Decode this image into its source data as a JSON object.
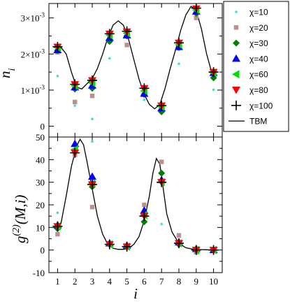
{
  "chart_data": [
    {
      "type": "scatter",
      "panel": "top",
      "ylabel_main": "n",
      "ylabel_sub": "i",
      "xlim": [
        0.5,
        10.5
      ],
      "ylim": [
        -0.0003,
        0.0034
      ],
      "y_ticks": [
        {
          "v": 0,
          "label": "0"
        },
        {
          "v": 0.001,
          "label": "1×10",
          "exp": "-3"
        },
        {
          "v": 0.002,
          "label": "2×10",
          "exp": "-3"
        },
        {
          "v": 0.003,
          "label": "3×10",
          "exp": "-3"
        }
      ],
      "series": [
        {
          "name": "χ=10",
          "marker": "dot",
          "color": "#40e0d0",
          "values": [
            0.00139,
            0.00057,
            0.0002,
            0.00188,
            0.00225,
            0.00073,
            0.0005,
            0.00173,
            0.00307,
            0.00101
          ]
        },
        {
          "name": "χ=20",
          "marker": "square",
          "color": "#bc8f8f",
          "values": [
            0.00205,
            0.00067,
            0.00084,
            0.00236,
            0.00225,
            0.00094,
            0.00053,
            0.00216,
            0.003,
            0.0014
          ]
        },
        {
          "name": "χ=30",
          "marker": "diamond",
          "color": "#008000",
          "values": [
            0.0021,
            0.00103,
            0.00105,
            0.00235,
            0.0025,
            0.00088,
            0.0004,
            0.00218,
            0.00313,
            0.00134
          ]
        },
        {
          "name": "χ=40",
          "marker": "triangle-up",
          "color": "#0000ff",
          "values": [
            0.00211,
            0.00108,
            0.00113,
            0.00245,
            0.00252,
            0.0009,
            0.0005,
            0.0022,
            0.00318,
            0.00148
          ]
        },
        {
          "name": "χ=60",
          "marker": "triangle-left",
          "color": "#00e000",
          "values": [
            0.00218,
            0.00112,
            0.0012,
            0.00252,
            0.00258,
            0.00098,
            0.00054,
            0.00226,
            0.00322,
            0.00148
          ]
        },
        {
          "name": "χ=80",
          "marker": "triangle-down",
          "color": "#ff0000",
          "values": [
            0.0022,
            0.00116,
            0.00127,
            0.00256,
            0.00262,
            0.00105,
            0.00057,
            0.00231,
            0.00326,
            0.0015
          ]
        },
        {
          "name": "χ=100",
          "marker": "plus",
          "color": "#000000",
          "values": [
            0.0022,
            0.00116,
            0.00127,
            0.00256,
            0.00263,
            0.00105,
            0.00057,
            0.00231,
            0.00327,
            0.0015
          ]
        }
      ],
      "curve": {
        "name": "TBM",
        "x": [
          0.98,
          1.2,
          1.5,
          1.8,
          2.1,
          2.4,
          2.7,
          3.0,
          3.3,
          3.6,
          3.9,
          4.2,
          4.5,
          4.8,
          5.1,
          5.4,
          5.7,
          6.0,
          6.3,
          6.6,
          6.9,
          7.2,
          7.5,
          7.8,
          8.1,
          8.4,
          8.7,
          9.0,
          9.3,
          9.6,
          9.9
        ],
        "y": [
          0.00203,
          0.00218,
          0.002,
          0.0015,
          0.00108,
          0.00103,
          0.00118,
          0.00132,
          0.0016,
          0.002,
          0.00245,
          0.0028,
          0.00292,
          0.0028,
          0.0024,
          0.00185,
          0.0013,
          0.00088,
          0.0006,
          0.00048,
          0.0006,
          0.00105,
          0.0016,
          0.0021,
          0.00265,
          0.00308,
          0.00332,
          0.0032,
          0.0027,
          0.002,
          0.00148
        ]
      }
    },
    {
      "type": "scatter",
      "panel": "bottom",
      "ylabel_main": "g",
      "ylabel_sup": "(2)",
      "ylabel_rest": "(M,i)",
      "xlabel": "i",
      "xlim": [
        0.5,
        10.5
      ],
      "ylim": [
        -10,
        50
      ],
      "x_ticks": [
        "1",
        "2",
        "3",
        "4",
        "5",
        "6",
        "7",
        "8",
        "9",
        "10"
      ],
      "y_ticks": [
        "-10",
        "0",
        "10",
        "20",
        "30",
        "40",
        "50"
      ],
      "series": [
        {
          "name": "χ=10",
          "values": [
            16.5,
            45.0,
            48.0,
            2.5,
            0.5,
            19.5,
            11.5,
            6.0,
            -1.5,
            0.5
          ]
        },
        {
          "name": "χ=20",
          "values": [
            7.0,
            42.0,
            19.0,
            3.0,
            1.5,
            20.0,
            39.0,
            6.5,
            -1.0,
            0.0
          ]
        },
        {
          "name": "χ=30",
          "values": [
            9.5,
            44.0,
            28.0,
            2.5,
            1.5,
            12.5,
            34.0,
            2.5,
            0.0,
            0.0
          ]
        },
        {
          "name": "χ=40",
          "values": [
            11.0,
            47.0,
            32.5,
            3.0,
            2.0,
            17.5,
            31.0,
            3.5,
            0.5,
            0.0
          ]
        },
        {
          "name": "χ=60",
          "values": [
            10.5,
            44.5,
            29.5,
            2.5,
            1.5,
            15.5,
            30.0,
            3.0,
            0.0,
            0.0
          ]
        },
        {
          "name": "χ=80",
          "values": [
            10.5,
            43.0,
            29.0,
            2.5,
            1.5,
            15.0,
            30.0,
            3.0,
            0.0,
            0.0
          ]
        },
        {
          "name": "χ=100",
          "values": [
            10.5,
            43.0,
            29.0,
            2.5,
            1.5,
            15.0,
            30.0,
            3.0,
            0.0,
            0.0
          ]
        }
      ],
      "curve": {
        "name": "TBM",
        "x": [
          0.98,
          1.2,
          1.5,
          1.8,
          2.1,
          2.3,
          2.5,
          2.7,
          3.0,
          3.3,
          3.6,
          3.9,
          4.2,
          4.5,
          4.8,
          5.1,
          5.4,
          5.7,
          6.0,
          6.3,
          6.5,
          6.7,
          6.9,
          7.1,
          7.3,
          7.6,
          8.0,
          8.4,
          8.8,
          9.2,
          9.6,
          10.0
        ],
        "y": [
          10.0,
          12.0,
          24.0,
          37.0,
          46.0,
          49.0,
          46.5,
          39.0,
          27.0,
          15.0,
          7.0,
          2.5,
          0.8,
          0.3,
          0.3,
          0.8,
          2.5,
          6.0,
          13.0,
          24.0,
          34.0,
          40.5,
          38.0,
          27.0,
          16.0,
          8.0,
          3.0,
          1.0,
          0.4,
          0.2,
          0.1,
          0.0
        ]
      }
    }
  ],
  "legend": {
    "entries": [
      {
        "label": "χ=10",
        "marker": "dot",
        "color": "#40e0d0"
      },
      {
        "label": "χ=20",
        "marker": "square",
        "color": "#bc8f8f"
      },
      {
        "label": "χ=30",
        "marker": "diamond",
        "color": "#008000"
      },
      {
        "label": "χ=40",
        "marker": "triangle-up",
        "color": "#0000ff"
      },
      {
        "label": "χ=60",
        "marker": "triangle-left",
        "color": "#00e000"
      },
      {
        "label": "χ=80",
        "marker": "triangle-down",
        "color": "#ff0000"
      },
      {
        "label": "χ=100",
        "marker": "plus",
        "color": "#000000"
      },
      {
        "label": "TBM",
        "marker": "line",
        "color": "#000000"
      }
    ]
  }
}
